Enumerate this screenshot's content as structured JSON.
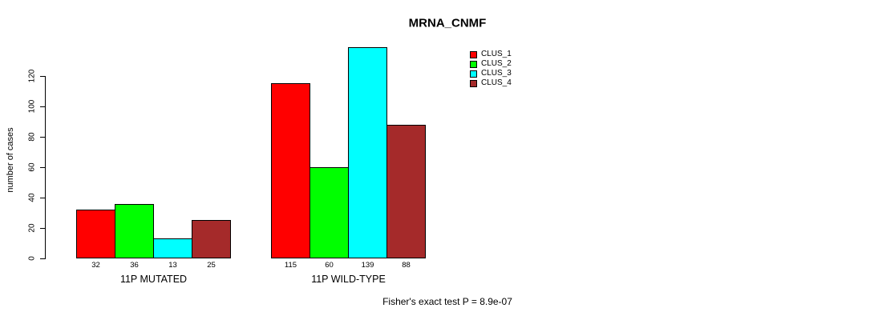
{
  "chart_data": {
    "type": "bar",
    "title": "MRNA_CNMF",
    "xlabel": "",
    "ylabel": "number of cases",
    "ylim": [
      0,
      140
    ],
    "yticks": [
      0,
      20,
      40,
      60,
      80,
      100,
      120
    ],
    "grid": false,
    "legend_position": "top-right",
    "categories": [
      "11P MUTATED",
      "11P WILD-TYPE"
    ],
    "series": [
      {
        "name": "CLUS_1",
        "color": "#FF0000",
        "values": [
          32,
          115
        ]
      },
      {
        "name": "CLUS_2",
        "color": "#00FF00",
        "values": [
          36,
          60
        ]
      },
      {
        "name": "CLUS_3",
        "color": "#00FFFF",
        "values": [
          13,
          139
        ]
      },
      {
        "name": "CLUS_4",
        "color": "#A52A2A",
        "values": [
          25,
          88
        ]
      }
    ],
    "bar_value_labels": [
      [
        32,
        36,
        13,
        25
      ],
      [
        115,
        60,
        139,
        88
      ]
    ],
    "annotation": "Fisher's exact test P = 8.9e-07"
  }
}
